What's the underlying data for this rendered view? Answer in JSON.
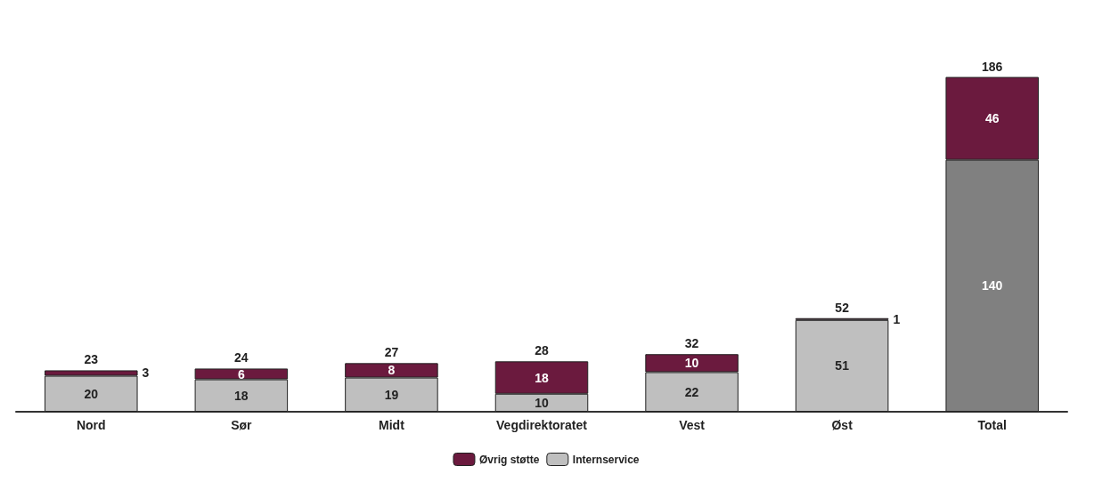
{
  "chart_data": {
    "type": "bar",
    "stacked": true,
    "data_labels": true,
    "legend": "bottom",
    "tick_labels": "x",
    "categories": [
      "Nord",
      "Sør",
      "Midt",
      "Vegdirektoratet",
      "Vest",
      "Øst",
      "Total"
    ],
    "series": [
      {
        "name": "Internservice",
        "color": "#bfbfbf",
        "colors": [
          "#bfbfbf",
          "#bfbfbf",
          "#bfbfbf",
          "#bfbfbf",
          "#bfbfbf",
          "#bfbfbf",
          "#808080"
        ],
        "values": [
          20,
          18,
          19,
          10,
          22,
          51,
          140
        ]
      },
      {
        "name": "Øvrig støtte",
        "color": "#6b1a3e",
        "values": [
          3,
          6,
          8,
          18,
          10,
          1,
          46
        ]
      }
    ],
    "totals": [
      "23",
      "24",
      "27",
      "28",
      "32",
      "52",
      "186"
    ]
  }
}
